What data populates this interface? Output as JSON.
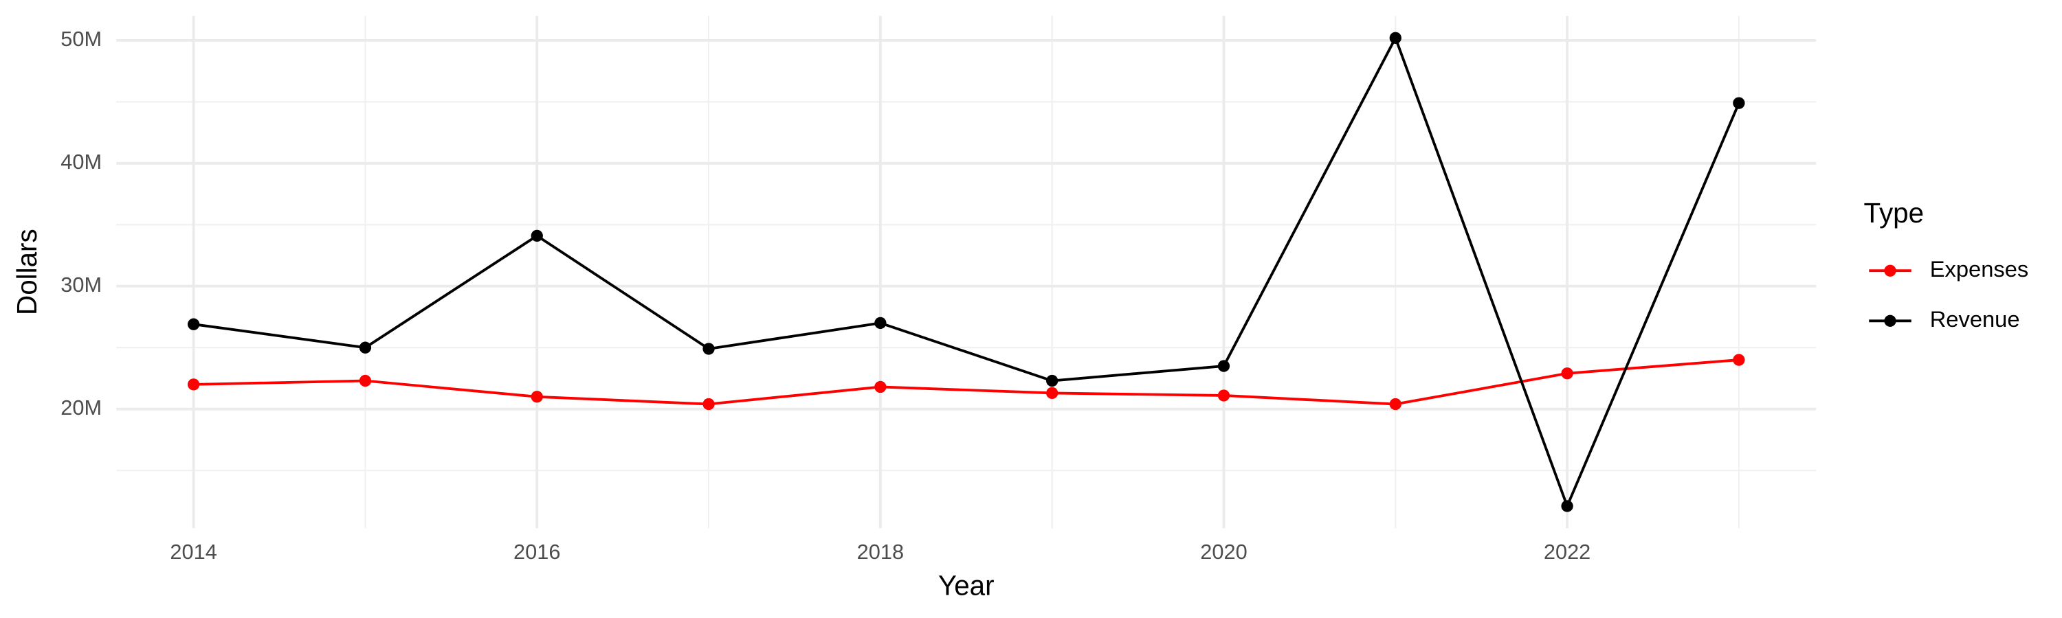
{
  "chart_data": {
    "type": "line",
    "x_label": "Year",
    "y_label": "Dollars",
    "legend_title": "Type",
    "x": [
      2014,
      2015,
      2016,
      2017,
      2018,
      2019,
      2020,
      2021,
      2022,
      2023
    ],
    "series": [
      {
        "name": "Expenses",
        "color": "#ff0000",
        "values": [
          22000000,
          22300000,
          21000000,
          20400000,
          21800000,
          21300000,
          21100000,
          20400000,
          22900000,
          24000000
        ]
      },
      {
        "name": "Revenue",
        "color": "#000000",
        "values": [
          26900000,
          25000000,
          34100000,
          24900000,
          27000000,
          22300000,
          23500000,
          50200000,
          12100000,
          44900000
        ]
      }
    ],
    "xlim": [
      2013.55,
      2023.45
    ],
    "xticks": [
      2014,
      2016,
      2018,
      2020,
      2022
    ],
    "ylim": [
      10300000,
      52000000
    ],
    "yticks": [
      {
        "value": 20000000,
        "label": "20M"
      },
      {
        "value": 30000000,
        "label": "30M"
      },
      {
        "value": 40000000,
        "label": "40M"
      },
      {
        "value": 50000000,
        "label": "50M"
      }
    ],
    "grid": true,
    "legend": "right"
  }
}
